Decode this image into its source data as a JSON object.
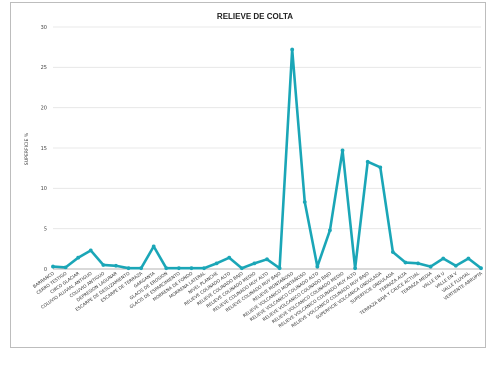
{
  "chart_data": {
    "type": "line",
    "title": "RELIEVE DE COLTA",
    "xlabel": "",
    "ylabel": "SUPERFICIE %",
    "ylim": [
      0,
      30
    ],
    "yticks": [
      0,
      5,
      10,
      15,
      20,
      25,
      30
    ],
    "grid": true,
    "color": "#1aa6b7",
    "categories": [
      "BARRANCO",
      "CERRO TESTIGO",
      "CIRCO GLACIAR",
      "COLUVIO ALUVIAL ANTIGUO",
      "COLUVIO ANTIGUO",
      "DEPRESION LAGUNAR",
      "ESCARPE DE DESLIZAMIENTO",
      "ESCARPE DE TERRAZA",
      "GARGANTA",
      "GLACIS DE EROSION",
      "GLACIS DE ESPARCIMIENTO",
      "MORRENA DE FONDO",
      "MORRENA LATERAL",
      "NIVEL PLANCHE",
      "RELIEVE COLINADO ALTO",
      "RELIEVE COLINADO BAJO",
      "RELIEVE COLINADO MEDIO",
      "RELIEVE COLINADO MUY ALTO",
      "RELIEVE COLINADO MUY BAJO",
      "RELIEVE MONTAÑOSO",
      "RELIEVE VOLCANICO MONTAÑOSO",
      "RELIEVE VOLCANICO COLINADO ALTO",
      "RELIEVE VOLCANICO COLINADO BAJO",
      "RELIEVE VOLCANICO COLINADO MEDIO",
      "RELIEVE VOLCANICO COLINADO MUY ALTO",
      "RELIEVE VOLCANICO COLINADO MUY BAJO",
      "SUPERFICIE VOLCANICA ONDULADA",
      "SUPERFICIE ONDULADA",
      "TERRAZA ALTA",
      "TERRAZA BAJA Y CAUCE ACTUAL",
      "TERRAZA MEDIA",
      "VALLE EN U",
      "VALLE EN V",
      "VALLE FLUVIAL",
      "VERTIENTE ABRUPTA"
    ],
    "values": [
      0.3,
      0.2,
      1.4,
      2.3,
      0.5,
      0.4,
      0.1,
      0.1,
      2.8,
      0.1,
      0.1,
      0.1,
      0.1,
      0.7,
      1.4,
      0.1,
      0.7,
      1.2,
      0.1,
      27.2,
      8.3,
      0.3,
      4.8,
      14.7,
      0.1,
      13.3,
      12.6,
      2.1,
      0.8,
      0.7,
      0.3,
      1.3,
      0.4,
      1.3,
      0.1
    ]
  }
}
